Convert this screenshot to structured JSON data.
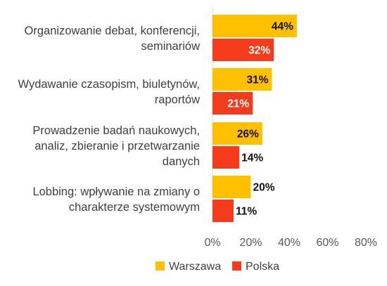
{
  "chart_data": {
    "type": "bar",
    "orientation": "horizontal",
    "categories": [
      [
        "Organizowanie debat, konferencji,",
        "seminariów"
      ],
      [
        "Wydawanie czasopism, biuletynów,",
        "raportów"
      ],
      [
        "Prowadzenie badań naukowych,",
        "analiz, zbieranie i przetwarzanie",
        "danych"
      ],
      [
        "Lobbing: wpływanie na zmiany o",
        "charakterze systemowym"
      ]
    ],
    "series": [
      {
        "name": "Warszawa",
        "color": "#FFC000",
        "values": [
          44,
          31,
          26,
          20
        ],
        "labels": [
          "44%",
          "31%",
          "26%",
          "20%"
        ]
      },
      {
        "name": "Polska",
        "color": "#F43B1C",
        "values": [
          32,
          21,
          14,
          11
        ],
        "labels": [
          "32%",
          "21%",
          "14%",
          "11%"
        ]
      }
    ],
    "xlim": [
      0,
      80
    ],
    "x_ticks": [
      0,
      20,
      40,
      60,
      80
    ],
    "x_tick_labels": [
      "0%",
      "20%",
      "40%",
      "60%",
      "80%"
    ],
    "gridlines": false,
    "legend_position": "bottom"
  }
}
